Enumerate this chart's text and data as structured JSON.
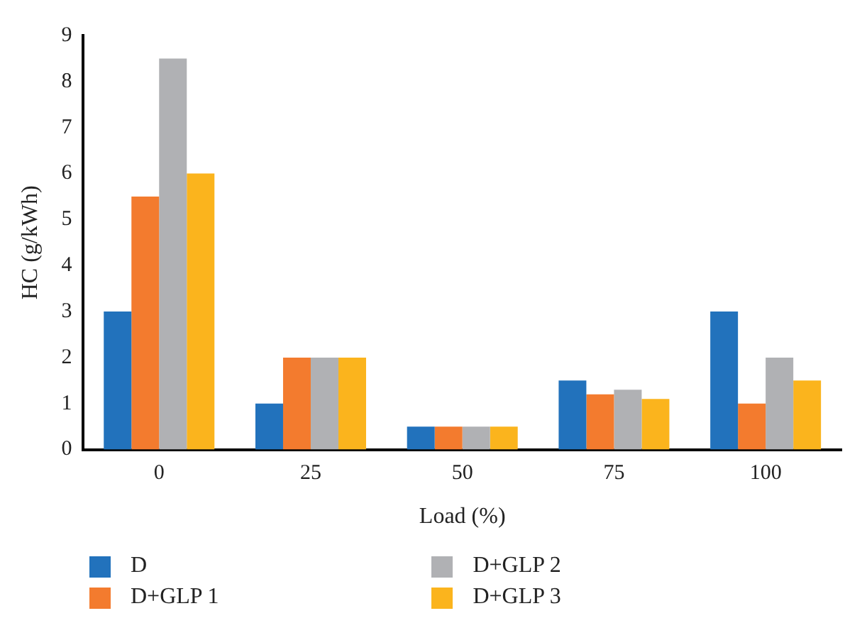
{
  "chart_data": {
    "type": "bar",
    "xlabel": "Load (%)",
    "ylabel": "HC (g/kWh)",
    "categories": [
      "0",
      "25",
      "50",
      "75",
      "100"
    ],
    "series": [
      {
        "name": "D",
        "color": "#2272bc",
        "values": [
          3,
          1,
          0.5,
          1.5,
          3
        ]
      },
      {
        "name": "D+GLP 1",
        "color": "#f37b2e",
        "values": [
          5.5,
          2,
          0.5,
          1.2,
          1
        ]
      },
      {
        "name": "D+GLP 2",
        "color": "#b0b1b4",
        "values": [
          8.5,
          2,
          0.5,
          1.3,
          2
        ]
      },
      {
        "name": "D+GLP 3",
        "color": "#fbb41d",
        "values": [
          6,
          2,
          0.5,
          1.1,
          1.5
        ]
      }
    ],
    "ylim": [
      0,
      9
    ],
    "yticks": [
      0,
      1,
      2,
      3,
      4,
      5,
      6,
      7,
      8,
      9
    ],
    "grid": false,
    "legend": "bottom"
  }
}
